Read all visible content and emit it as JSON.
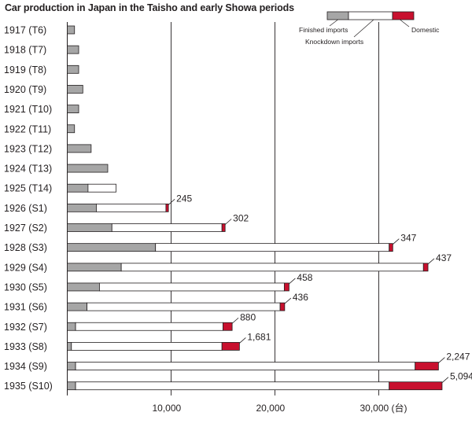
{
  "chart_data": {
    "type": "bar",
    "stacked": true,
    "orientation": "horizontal",
    "title": "Car production in Japan in the Taisho and early Showa periods",
    "categories": [
      "1917 (T6)",
      "1918 (T7)",
      "1919 (T8)",
      "1920 (T9)",
      "1921 (T10)",
      "1922 (T11)",
      "1923 (T12)",
      "1924 (T13)",
      "1925 (T14)",
      "1926 (S1)",
      "1927 (S2)",
      "1928 (S3)",
      "1929 (S4)",
      "1930 (S5)",
      "1931 (S6)",
      "1932 (S7)",
      "1933 (S8)",
      "1934 (S9)",
      "1935 (S10)"
    ],
    "series": [
      {
        "name": "Finished imports",
        "color": "#a6a6a6",
        "values": [
          700,
          1100,
          1100,
          1500,
          1100,
          700,
          2300,
          3900,
          2000,
          2800,
          4300,
          8500,
          5200,
          3100,
          1900,
          800,
          400,
          800,
          800
        ]
      },
      {
        "name": "Knockdown imports",
        "color": "#ffffff",
        "values": [
          0,
          0,
          0,
          0,
          0,
          0,
          0,
          0,
          2700,
          6700,
          10600,
          22500,
          29100,
          17800,
          18600,
          14200,
          14500,
          32700,
          30200
        ]
      },
      {
        "name": "Domestic",
        "color": "#c8102e",
        "values": [
          0,
          0,
          0,
          0,
          0,
          0,
          0,
          0,
          0,
          245,
          302,
          347,
          437,
          458,
          436,
          880,
          1681,
          2247,
          5094
        ]
      }
    ],
    "data_labels": [
      "",
      "",
      "",
      "",
      "",
      "",
      "",
      "",
      "",
      "245",
      "302",
      "347",
      "437",
      "458",
      "436",
      "880",
      "1,681",
      "2,247",
      "5,094"
    ],
    "x_ticks": [
      10000,
      20000,
      30000
    ],
    "x_tick_labels": [
      "10,000",
      "20,000",
      "30,000 (台)"
    ],
    "xlim": [
      0,
      39000
    ],
    "grid": true,
    "legend_position": "top-right"
  }
}
